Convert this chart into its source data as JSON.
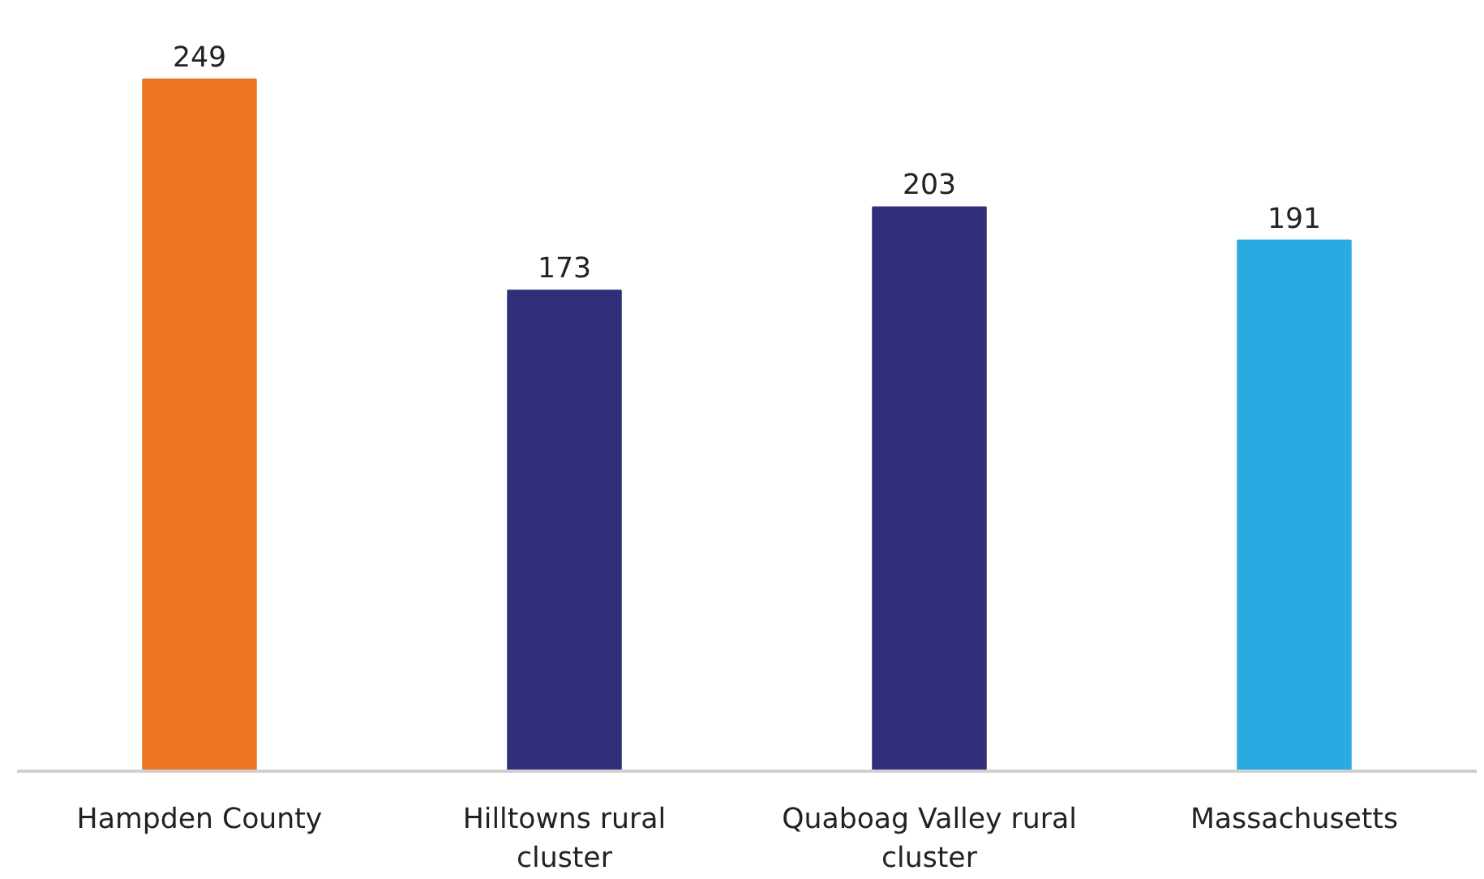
{
  "chart_data": {
    "type": "bar",
    "categories": [
      "Hampden County",
      "Hilltowns rural cluster",
      "Quaboag Valley rural cluster",
      "Massachusetts"
    ],
    "values": [
      249,
      173,
      203,
      191
    ],
    "colors": [
      "#ee7623",
      "#312e7a",
      "#312e7a",
      "#29abe2"
    ],
    "data_labels": true,
    "grid": false
  }
}
